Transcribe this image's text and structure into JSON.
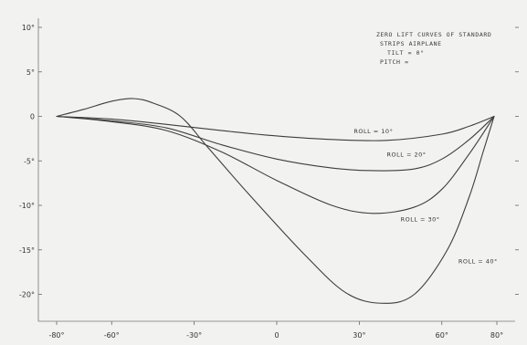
{
  "chart_data": {
    "type": "line",
    "title": "",
    "xlabel": "",
    "ylabel": "",
    "xlim": [
      -80,
      80
    ],
    "ylim": [
      -22,
      10
    ],
    "grid": false,
    "x_ticks": [
      {
        "value": -80,
        "label": "-80°"
      },
      {
        "value": -60,
        "label": "-60°"
      },
      {
        "value": -30,
        "label": "-30°"
      },
      {
        "value": 0,
        "label": "0"
      },
      {
        "value": 30,
        "label": "30°"
      },
      {
        "value": 60,
        "label": "60°"
      },
      {
        "value": 80,
        "label": "80°"
      }
    ],
    "y_ticks": [
      {
        "value": 10,
        "label": "10°"
      },
      {
        "value": 5,
        "label": "5°"
      },
      {
        "value": 0,
        "label": "0"
      },
      {
        "value": -5,
        "label": "-5°"
      },
      {
        "value": -10,
        "label": "-10°"
      },
      {
        "value": -15,
        "label": "-15°"
      },
      {
        "value": -20,
        "label": "-20°"
      }
    ],
    "series": [
      {
        "label": "ROLL = 10°",
        "label_at": {
          "x": 28,
          "y": -1.9
        },
        "points": [
          [
            -80,
            0
          ],
          [
            -60,
            -0.3
          ],
          [
            -40,
            -0.9
          ],
          [
            -20,
            -1.6
          ],
          [
            0,
            -2.2
          ],
          [
            20,
            -2.6
          ],
          [
            40,
            -2.7
          ],
          [
            60,
            -2.0
          ],
          [
            70,
            -1.1
          ],
          [
            79,
            0
          ]
        ]
      },
      {
        "label": "ROLL = 20°",
        "label_at": {
          "x": 40,
          "y": -4.5
        },
        "points": [
          [
            -80,
            0
          ],
          [
            -60,
            -0.5
          ],
          [
            -40,
            -1.3
          ],
          [
            -20,
            -3.2
          ],
          [
            0,
            -4.8
          ],
          [
            20,
            -5.8
          ],
          [
            35,
            -6.1
          ],
          [
            50,
            -5.9
          ],
          [
            60,
            -4.8
          ],
          [
            70,
            -2.6
          ],
          [
            79,
            0
          ]
        ]
      },
      {
        "label": "ROLL = 30°",
        "label_at": {
          "x": 45,
          "y": -11.8
        },
        "points": [
          [
            -80,
            0
          ],
          [
            -60,
            -0.6
          ],
          [
            -40,
            -1.6
          ],
          [
            -20,
            -4.0
          ],
          [
            0,
            -7.2
          ],
          [
            20,
            -10.0
          ],
          [
            35,
            -10.9
          ],
          [
            50,
            -10.2
          ],
          [
            60,
            -8.2
          ],
          [
            70,
            -4.2
          ],
          [
            79,
            0
          ]
        ]
      },
      {
        "label": "ROLL = 40°",
        "label_at": {
          "x": 66,
          "y": -16.5
        },
        "points": [
          [
            -80,
            0
          ],
          [
            -70,
            0.8
          ],
          [
            -60,
            1.7
          ],
          [
            -52,
            2.0
          ],
          [
            -45,
            1.5
          ],
          [
            -35,
            0.0
          ],
          [
            -25,
            -3.5
          ],
          [
            -10,
            -8.8
          ],
          [
            10,
            -15.5
          ],
          [
            25,
            -19.8
          ],
          [
            38,
            -21.0
          ],
          [
            50,
            -20.0
          ],
          [
            62,
            -15.0
          ],
          [
            70,
            -9.0
          ],
          [
            75,
            -4.0
          ],
          [
            79,
            0
          ]
        ]
      }
    ],
    "annotation_lines": [
      "ZERO LIFT CURVES OF STANDARD",
      "STRIPS AIRPLANE",
      "TILT = 0°",
      "PITCH ="
    ]
  }
}
